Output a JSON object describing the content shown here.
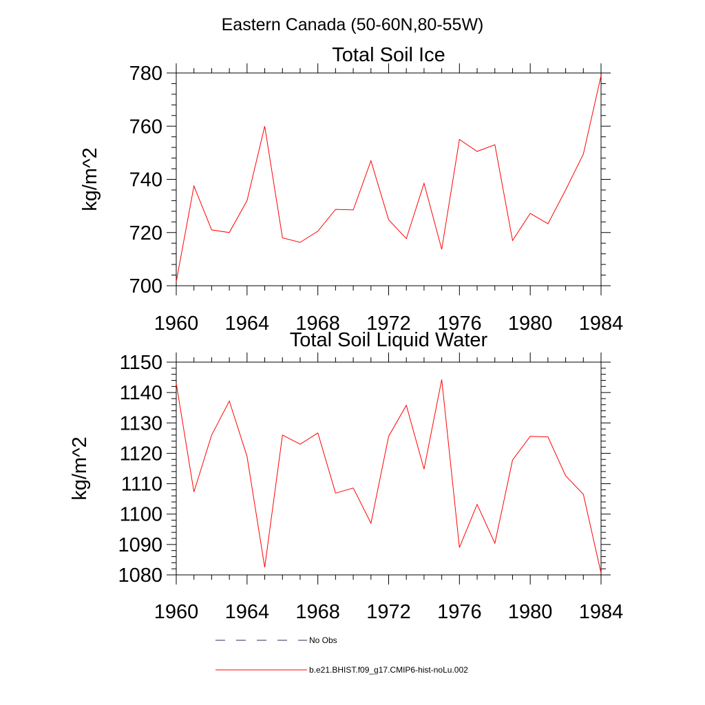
{
  "figure": {
    "title": "Eastern Canada (50-60N,80-55W)"
  },
  "legend": {
    "entries": [
      {
        "label": "No Obs",
        "style": "dashed",
        "color": "#2b2b55"
      },
      {
        "label": "b.e21.BHIST.f09_g17.CMIP6-hist-noLu.002",
        "style": "solid",
        "color": "#ff0000"
      }
    ]
  },
  "chart_data": [
    {
      "type": "line",
      "title": "Total Soil Ice",
      "ylabel": "kg/m^2",
      "xlim": [
        1960,
        1984
      ],
      "ylim": [
        700,
        780
      ],
      "xticks": [
        1960,
        1964,
        1968,
        1972,
        1976,
        1980,
        1984
      ],
      "yticks": [
        700,
        720,
        740,
        760,
        780
      ],
      "series": [
        {
          "name": "b.e21.BHIST.f09_g17.CMIP6-hist-noLu.002",
          "color": "#ff0000",
          "x": [
            1960,
            1961,
            1962,
            1963,
            1964,
            1965,
            1966,
            1967,
            1968,
            1969,
            1970,
            1971,
            1972,
            1973,
            1974,
            1975,
            1976,
            1977,
            1978,
            1979,
            1980,
            1981,
            1982,
            1983,
            1984
          ],
          "values": [
            701.5,
            737.5,
            721,
            720,
            732,
            760,
            718,
            716.3,
            720.5,
            728.7,
            728.5,
            747,
            724.8,
            717.7,
            738.5,
            713.7,
            755,
            750.5,
            753,
            717,
            727.2,
            723.3,
            736,
            749.5,
            779
          ]
        }
      ]
    },
    {
      "type": "line",
      "title": "Total Soil Liquid Water",
      "ylabel": "kg/m^2",
      "xlim": [
        1960,
        1984
      ],
      "ylim": [
        1080,
        1150
      ],
      "xticks": [
        1960,
        1964,
        1968,
        1972,
        1976,
        1980,
        1984
      ],
      "yticks": [
        1080,
        1090,
        1100,
        1110,
        1120,
        1130,
        1140,
        1150
      ],
      "series": [
        {
          "name": "b.e21.BHIST.f09_g17.CMIP6-hist-noLu.002",
          "color": "#ff0000",
          "x": [
            1960,
            1961,
            1962,
            1963,
            1964,
            1965,
            1966,
            1967,
            1968,
            1969,
            1970,
            1971,
            1972,
            1973,
            1974,
            1975,
            1976,
            1977,
            1978,
            1979,
            1980,
            1981,
            1982,
            1983,
            1984
          ],
          "values": [
            1143,
            1107.3,
            1126,
            1137.2,
            1119,
            1082.5,
            1126,
            1123,
            1126.7,
            1106.9,
            1108.6,
            1097,
            1125.6,
            1135.8,
            1114.8,
            1144.3,
            1089,
            1103.2,
            1090.4,
            1117.8,
            1125.6,
            1125.4,
            1112.6,
            1106.5,
            1080.6
          ]
        }
      ]
    }
  ]
}
